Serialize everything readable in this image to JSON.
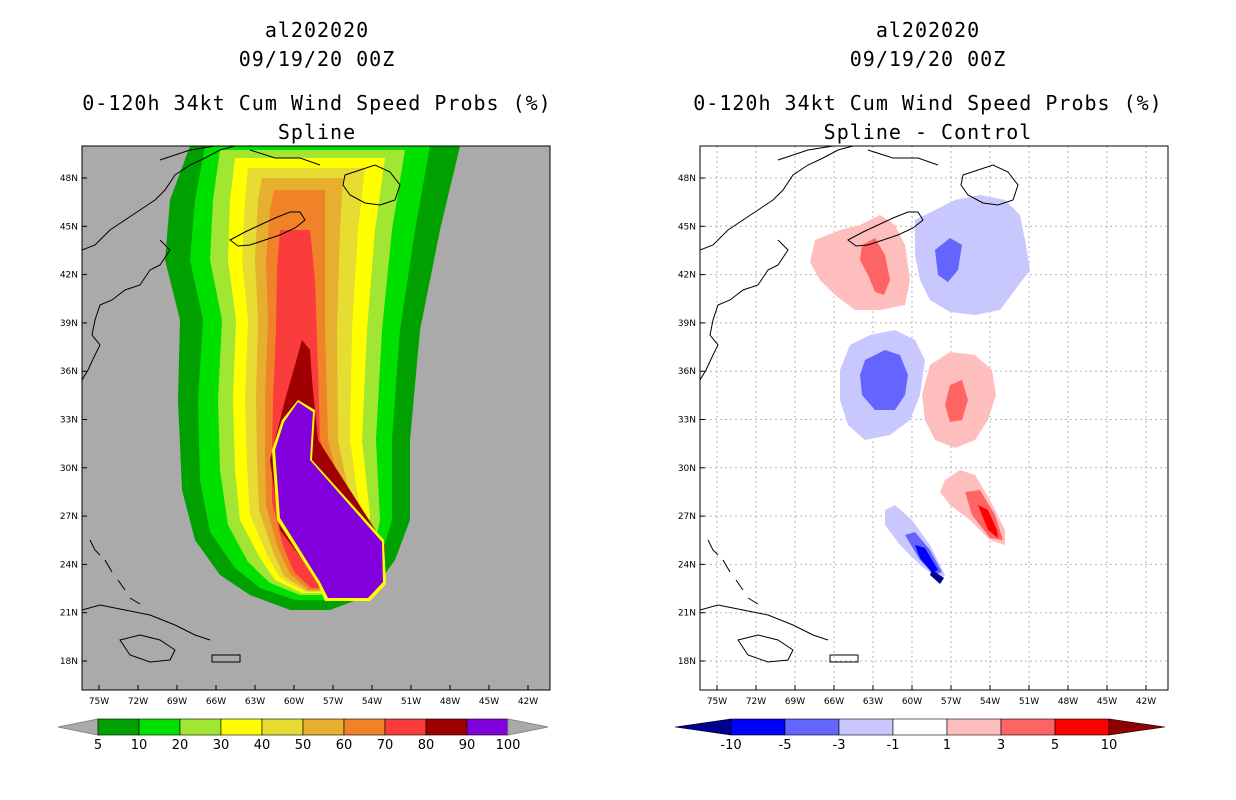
{
  "left": {
    "title_line1": "al202020",
    "title_line2": "09/19/20 00Z",
    "title_line3": "0-120h 34kt Cum Wind Speed Probs (%)",
    "subtitle": "Spline",
    "background": "#aaaaaa",
    "colorbar": {
      "labels": [
        "5",
        "10",
        "20",
        "30",
        "40",
        "50",
        "60",
        "70",
        "80",
        "90",
        "100"
      ],
      "colors": [
        "#00a000",
        "#00e000",
        "#a0e632",
        "#ffff00",
        "#e6dc32",
        "#e6af2d",
        "#f08228",
        "#fa3c3c",
        "#a00000",
        "#8200dc"
      ]
    }
  },
  "right": {
    "title_line1": "al202020",
    "title_line2": "09/19/20 00Z",
    "title_line3": "0-120h 34kt Cum Wind Speed Probs (%)",
    "subtitle": "Spline - Control",
    "background": "#ffffff",
    "colorbar": {
      "labels": [
        "-10",
        "-5",
        "-3",
        "-1",
        "1",
        "3",
        "5",
        "10"
      ],
      "colors": [
        "#00008f",
        "#0000ff",
        "#6464ff",
        "#c8c8ff",
        "#ffffff",
        "#ffbebe",
        "#ff6464",
        "#ff0000",
        "#8f0000"
      ]
    }
  },
  "axes": {
    "lat_labels": [
      "48N",
      "45N",
      "42N",
      "39N",
      "36N",
      "33N",
      "30N",
      "27N",
      "24N",
      "21N",
      "18N"
    ],
    "lon_labels": [
      "75W",
      "72W",
      "69W",
      "66W",
      "63W",
      "60W",
      "57W",
      "54W",
      "51W",
      "48W",
      "45W",
      "42W"
    ]
  }
}
